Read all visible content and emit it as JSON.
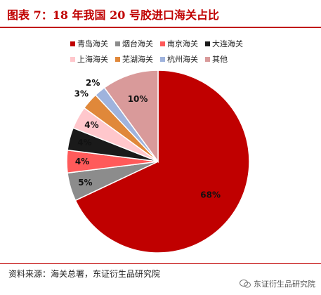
{
  "title": "图表 7：18 年我国 20 号胶进口海关占比",
  "source": "资料来源：海关总署，东证衍生品研究院",
  "watermark": "东证衍生品研究院",
  "chart_data": {
    "type": "pie",
    "series": [
      {
        "name": "青岛海关",
        "value": 68,
        "label": "68%",
        "color": "#c00000"
      },
      {
        "name": "烟台海关",
        "value": 5,
        "label": "5%",
        "color": "#8c8c8c"
      },
      {
        "name": "南京海关",
        "value": 4,
        "label": "4%",
        "color": "#ff5a5a"
      },
      {
        "name": "大连海关",
        "value": 4,
        "label": "4%",
        "color": "#1a1a1a"
      },
      {
        "name": "上海海关",
        "value": 4,
        "label": "4%",
        "color": "#ffc7cc"
      },
      {
        "name": "芜湖海关",
        "value": 3,
        "label": "3%",
        "color": "#e0883a"
      },
      {
        "name": "杭州海关",
        "value": 2,
        "label": "2%",
        "color": "#9fb3dd"
      },
      {
        "name": "其他",
        "value": 10,
        "label": "10%",
        "color": "#d99a9a"
      }
    ],
    "legend_position": "top"
  }
}
